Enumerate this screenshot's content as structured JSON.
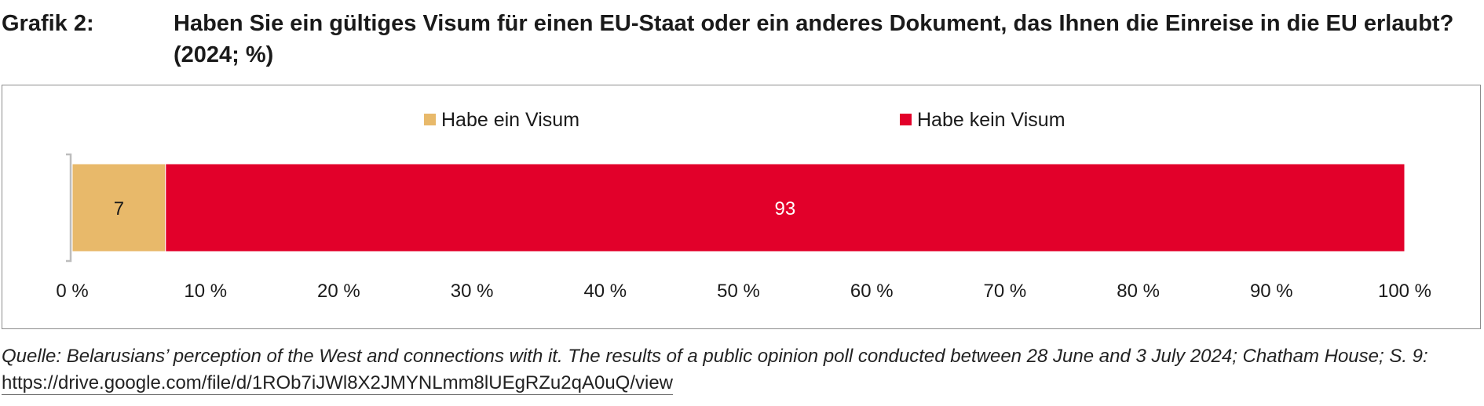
{
  "title": {
    "label": "Grafik 2:",
    "text": "Haben Sie ein gültiges Visum für einen EU-Staat oder ein anderes Dokument, das Ihnen die Einreise in die EU erlaubt? (2024; %)"
  },
  "chart_data": {
    "type": "bar",
    "orientation": "horizontal",
    "stacked": true,
    "percent": true,
    "categories": [
      ""
    ],
    "series": [
      {
        "name": "Habe ein Visum",
        "values": [
          7
        ],
        "color": "#e8b96a",
        "label_color": "#1a1a1a"
      },
      {
        "name": "Habe kein Visum",
        "values": [
          93
        ],
        "color": "#e2002a",
        "label_color": "#ffffff"
      }
    ],
    "xlim": [
      0,
      100
    ],
    "xticks": [
      0,
      10,
      20,
      30,
      40,
      50,
      60,
      70,
      80,
      90,
      100
    ],
    "xtick_labels": [
      "0 %",
      "10 %",
      "20 %",
      "30 %",
      "40 %",
      "50 %",
      "60 %",
      "70 %",
      "80 %",
      "90 %",
      "100 %"
    ],
    "legend_position": "top",
    "grid": false
  },
  "source": {
    "text": "Quelle: Belarusians’ perception of the West and connections with it. The results of a public opinion poll conducted between 28 June and 3 July 2024; Chatham House; S. 9: ",
    "link": "https://drive.google.com/file/d/1ROb7iJWl8X2JMYNLmm8lUEgRZu2qA0uQ/view"
  }
}
